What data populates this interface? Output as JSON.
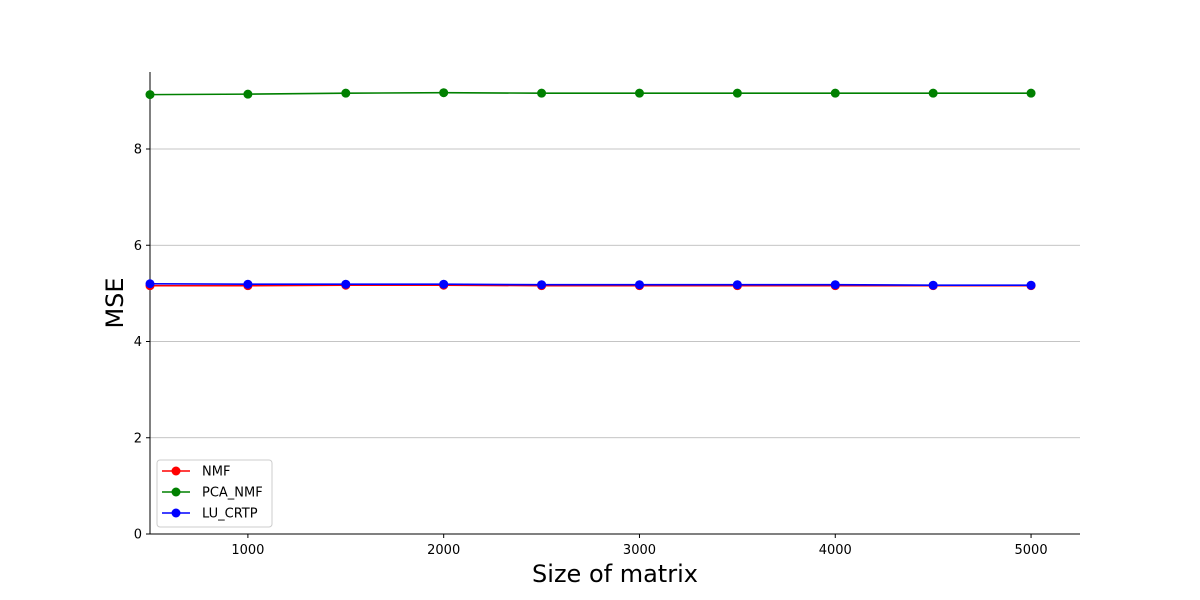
{
  "chart_data": {
    "type": "line",
    "xlabel": "Size of matrix",
    "ylabel": "MSE",
    "xlim": [
      500,
      5250
    ],
    "ylim": [
      0,
      9.6
    ],
    "xticks": [
      1000,
      2000,
      3000,
      4000,
      5000
    ],
    "yticks": [
      0,
      2,
      4,
      6,
      8
    ],
    "grid": "y-major",
    "legend_position": "lower-left",
    "x": [
      500,
      1000,
      1500,
      2000,
      2500,
      3000,
      3500,
      4000,
      4500,
      5000
    ],
    "series": [
      {
        "name": "NMF",
        "color": "#ff0000",
        "marker": "circle",
        "values": [
          5.16,
          5.16,
          5.17,
          5.17,
          5.16,
          5.16,
          5.16,
          5.16,
          5.16,
          5.16
        ]
      },
      {
        "name": "PCA_NMF",
        "color": "#008000",
        "marker": "circle",
        "values": [
          9.13,
          9.14,
          9.16,
          9.17,
          9.16,
          9.16,
          9.16,
          9.16,
          9.16,
          9.16
        ]
      },
      {
        "name": "LU_CRTP",
        "color": "#0000ff",
        "marker": "circle",
        "values": [
          5.2,
          5.19,
          5.19,
          5.19,
          5.18,
          5.18,
          5.18,
          5.18,
          5.17,
          5.17
        ]
      }
    ]
  }
}
